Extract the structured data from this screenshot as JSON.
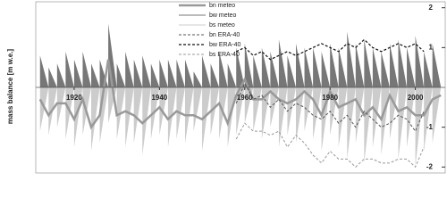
{
  "chart_data": {
    "type": "line",
    "y_label": "mass balance [m w.e.]",
    "x": [
      1912,
      1914,
      1916,
      1918,
      1920,
      1922,
      1924,
      1926,
      1928,
      1930,
      1932,
      1934,
      1936,
      1938,
      1940,
      1942,
      1944,
      1946,
      1948,
      1950,
      1952,
      1954,
      1956,
      1958,
      1960,
      1962,
      1964,
      1966,
      1968,
      1970,
      1972,
      1974,
      1976,
      1978,
      1980,
      1982,
      1984,
      1986,
      1988,
      1990,
      1992,
      1994,
      1996,
      1998,
      2000,
      2002,
      2004,
      2006
    ],
    "xlim": [
      1911,
      2007
    ],
    "xticks": [
      1920,
      1940,
      1960,
      1980,
      2000
    ],
    "ylim": [
      -2.15,
      2.15
    ],
    "yticks": [
      -2,
      -1,
      1,
      2
    ],
    "legend": "top-left",
    "series": [
      {
        "name": "bn meteo",
        "color": "#999999",
        "style": "line",
        "width": 2.5,
        "dash": false,
        "values": [
          -0.3,
          -0.7,
          -0.4,
          -0.4,
          -0.8,
          -0.3,
          -1.0,
          -0.7,
          0.7,
          -0.7,
          -0.6,
          -0.7,
          -0.9,
          -0.7,
          -0.5,
          -0.8,
          -0.6,
          -0.7,
          -0.7,
          -0.8,
          -0.6,
          -0.4,
          -0.9,
          -0.2,
          0.2,
          -0.3,
          -0.3,
          -0.1,
          -0.3,
          -0.4,
          -0.3,
          -0.1,
          -0.3,
          -0.7,
          -0.1,
          -0.5,
          -0.4,
          -0.3,
          -0.7,
          -0.5,
          -0.8,
          -0.2,
          -0.6,
          -0.5,
          -0.7,
          -0.7,
          -0.3,
          -0.2
        ]
      },
      {
        "name": "bw meteo",
        "color": "#777777",
        "style": "area",
        "width": 1,
        "dash": false,
        "values": [
          0.8,
          0.5,
          0.6,
          0.9,
          0.7,
          0.9,
          0.6,
          0.7,
          1.6,
          0.6,
          0.9,
          0.7,
          0.8,
          0.6,
          0.7,
          0.7,
          0.7,
          0.7,
          0.4,
          0.8,
          0.6,
          0.9,
          0.6,
          1.0,
          1.1,
          0.8,
          1.0,
          0.9,
          1.2,
          0.8,
          1.1,
          1.0,
          1.0,
          0.9,
          1.1,
          1.0,
          1.4,
          1.1,
          1.2,
          1.0,
          0.9,
          1.1,
          1.2,
          1.0,
          1.3,
          0.9,
          1.1,
          1.1
        ]
      },
      {
        "name": "bs meteo",
        "color": "#cccccc",
        "style": "area",
        "width": 1,
        "dash": false,
        "values": [
          -1.1,
          -1.2,
          -1.0,
          -1.3,
          -1.5,
          -1.2,
          -1.6,
          -1.4,
          -0.9,
          -1.3,
          -1.5,
          -1.4,
          -1.7,
          -1.3,
          -1.2,
          -1.5,
          -1.3,
          -1.4,
          -1.1,
          -1.6,
          -1.2,
          -1.3,
          -1.5,
          -1.2,
          -0.9,
          -1.1,
          -1.3,
          -1.0,
          -1.5,
          -1.2,
          -1.4,
          -1.1,
          -1.3,
          -1.6,
          -1.2,
          -1.5,
          -1.8,
          -1.4,
          -1.9,
          -1.5,
          -1.7,
          -1.3,
          -1.8,
          -1.5,
          -2.0,
          -1.6,
          -1.4,
          -1.3
        ]
      },
      {
        "name": "bn ERA-40",
        "color": "#555555",
        "style": "line",
        "width": 1,
        "dash": true,
        "values": [
          null,
          null,
          null,
          null,
          null,
          null,
          null,
          null,
          null,
          null,
          null,
          null,
          null,
          null,
          null,
          null,
          null,
          null,
          null,
          null,
          null,
          null,
          null,
          -0.4,
          0.1,
          -0.3,
          -0.2,
          -0.5,
          -0.3,
          -0.6,
          -0.4,
          -0.5,
          -0.7,
          -0.8,
          -0.6,
          -0.9,
          -0.7,
          -1.0,
          -0.6,
          -0.8,
          -1.0,
          -0.9,
          -0.7,
          -0.8,
          -1.1,
          -0.6,
          null,
          null
        ]
      },
      {
        "name": "bw ERA-40",
        "color": "#111111",
        "style": "line",
        "width": 1.2,
        "dash": true,
        "values": [
          null,
          null,
          null,
          null,
          null,
          null,
          null,
          null,
          null,
          null,
          null,
          null,
          null,
          null,
          null,
          null,
          null,
          null,
          null,
          null,
          null,
          null,
          null,
          0.9,
          1.0,
          0.8,
          0.9,
          0.7,
          0.8,
          0.9,
          0.8,
          0.9,
          1.0,
          1.1,
          1.0,
          0.9,
          1.1,
          1.0,
          1.2,
          1.0,
          0.9,
          1.0,
          1.1,
          1.0,
          1.1,
          0.9,
          null,
          null
        ]
      },
      {
        "name": "bs ERA-40",
        "color": "#999999",
        "style": "line",
        "width": 1,
        "dash": true,
        "values": [
          null,
          null,
          null,
          null,
          null,
          null,
          null,
          null,
          null,
          null,
          null,
          null,
          null,
          null,
          null,
          null,
          null,
          null,
          null,
          null,
          null,
          null,
          null,
          -1.3,
          -0.9,
          -1.1,
          -1.1,
          -1.2,
          -1.1,
          -1.5,
          -1.2,
          -1.4,
          -1.7,
          -1.9,
          -1.6,
          -1.8,
          -1.8,
          -2.0,
          -1.8,
          -1.8,
          -1.9,
          -1.9,
          -1.8,
          -1.8,
          -2.0,
          -1.5,
          null,
          null
        ]
      }
    ]
  }
}
